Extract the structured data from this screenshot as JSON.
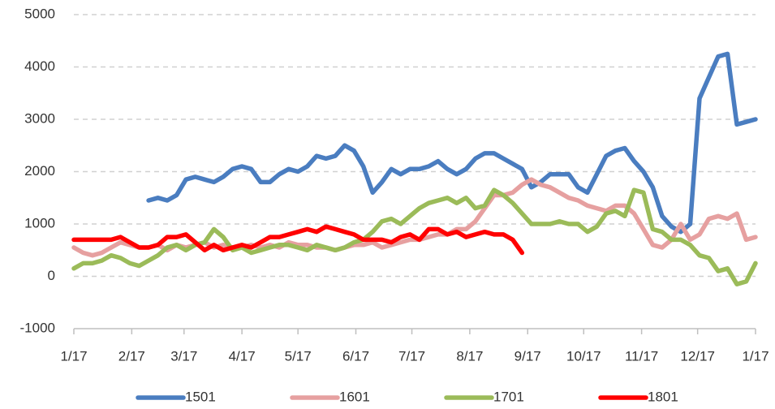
{
  "chart_data": {
    "type": "line",
    "x": [
      0,
      5,
      10,
      15,
      20,
      25,
      30,
      35,
      40,
      45,
      50,
      55,
      60,
      65,
      70,
      75,
      80,
      85,
      90,
      95,
      100,
      105,
      110,
      115,
      120,
      125,
      130,
      135,
      140,
      145,
      150,
      155,
      160,
      165,
      170,
      175,
      180,
      185,
      190,
      195,
      200,
      205,
      210,
      215,
      220,
      225,
      230,
      235,
      240,
      245,
      250,
      255,
      260,
      265,
      270,
      275,
      280,
      285,
      290,
      295,
      300,
      305,
      310,
      315,
      320,
      325,
      330,
      335,
      340,
      345,
      350,
      355,
      360,
      365
    ],
    "xlim": [
      0,
      365
    ],
    "xticks": [
      {
        "value": 0,
        "label": "1/17"
      },
      {
        "value": 31,
        "label": "2/17"
      },
      {
        "value": 59,
        "label": "3/17"
      },
      {
        "value": 90,
        "label": "4/17"
      },
      {
        "value": 120,
        "label": "5/17"
      },
      {
        "value": 151,
        "label": "6/17"
      },
      {
        "value": 181,
        "label": "7/17"
      },
      {
        "value": 212,
        "label": "8/17"
      },
      {
        "value": 243,
        "label": "9/17"
      },
      {
        "value": 273,
        "label": "10/17"
      },
      {
        "value": 304,
        "label": "11/17"
      },
      {
        "value": 334,
        "label": "12/17"
      },
      {
        "value": 365,
        "label": "1/17"
      }
    ],
    "ylim": [
      -1000,
      5000
    ],
    "yticks": [
      -1000,
      0,
      1000,
      2000,
      3000,
      4000,
      5000
    ],
    "grid": true,
    "legend": "bottom",
    "series": [
      {
        "name": "1501",
        "color": "#4a7dc0",
        "values": [
          null,
          null,
          null,
          null,
          null,
          null,
          null,
          null,
          1450,
          1500,
          1450,
          1550,
          1850,
          1900,
          1850,
          1800,
          1900,
          2050,
          2100,
          2050,
          1800,
          1800,
          1950,
          2050,
          2000,
          2100,
          2300,
          2250,
          2300,
          2500,
          2400,
          2100,
          1600,
          1800,
          2050,
          1950,
          2050,
          2050,
          2100,
          2200,
          2050,
          1950,
          2050,
          2250,
          2350,
          2350,
          2250,
          2150,
          2050,
          1700,
          1800,
          1950,
          1950,
          1950,
          1700,
          1600,
          1950,
          2300,
          2400,
          2450,
          2200,
          2000,
          1700,
          1150,
          950,
          850,
          1000,
          3400,
          3800,
          4200,
          4250,
          2900,
          2950,
          3000
        ]
      },
      {
        "name": "1601",
        "color": "#e6a0a0",
        "values": [
          550,
          450,
          400,
          450,
          550,
          650,
          600,
          550,
          550,
          600,
          500,
          600,
          550,
          600,
          650,
          550,
          600,
          550,
          550,
          600,
          550,
          600,
          550,
          650,
          600,
          600,
          550,
          550,
          500,
          550,
          600,
          600,
          650,
          550,
          600,
          650,
          700,
          700,
          750,
          800,
          800,
          900,
          900,
          1050,
          1300,
          1550,
          1550,
          1600,
          1750,
          1850,
          1750,
          1700,
          1600,
          1500,
          1450,
          1350,
          1300,
          1250,
          1350,
          1350,
          1200,
          900,
          600,
          550,
          700,
          1000,
          700,
          800,
          1100,
          1150,
          1100,
          1200,
          700,
          750
        ]
      },
      {
        "name": "1701",
        "color": "#9bbb59",
        "values": [
          150,
          250,
          250,
          300,
          400,
          350,
          250,
          200,
          300,
          400,
          550,
          600,
          500,
          600,
          650,
          900,
          750,
          500,
          550,
          450,
          500,
          550,
          600,
          600,
          550,
          500,
          600,
          550,
          500,
          550,
          650,
          700,
          850,
          1050,
          1100,
          1000,
          1150,
          1300,
          1400,
          1450,
          1500,
          1400,
          1500,
          1300,
          1350,
          1650,
          1550,
          1400,
          1200,
          1000,
          1000,
          1000,
          1050,
          1000,
          1000,
          850,
          950,
          1200,
          1250,
          1150,
          1650,
          1600,
          900,
          850,
          700,
          700,
          600,
          400,
          350,
          100,
          150,
          -150,
          -100,
          250
        ]
      },
      {
        "name": "1801",
        "color": "#ff0000",
        "values": [
          700,
          700,
          700,
          700,
          700,
          750,
          650,
          550,
          550,
          600,
          750,
          750,
          800,
          650,
          500,
          600,
          500,
          550,
          600,
          550,
          650,
          750,
          750,
          800,
          850,
          900,
          850,
          950,
          900,
          850,
          800,
          700,
          700,
          700,
          650,
          750,
          800,
          700,
          900,
          900,
          800,
          850,
          750,
          800,
          850,
          800,
          800,
          700,
          450,
          null,
          null,
          null,
          null,
          null,
          null,
          null,
          null,
          null,
          null,
          null,
          null,
          null,
          null,
          null,
          null,
          null,
          null,
          null,
          null,
          null,
          null,
          null,
          null,
          null
        ]
      }
    ]
  }
}
